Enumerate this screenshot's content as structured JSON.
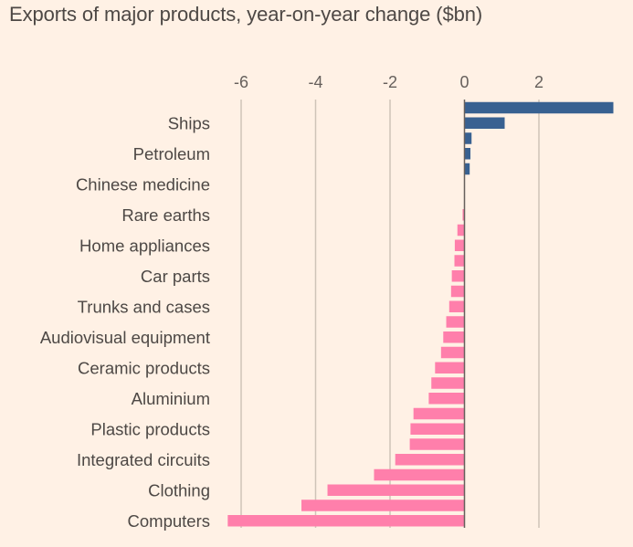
{
  "title": "Exports of major products, year-on-year change ($bn)",
  "colors": {
    "background": "#fff1e5",
    "positive": "#386191",
    "negative": "#ff7fab",
    "gridline": "#cfc4b8",
    "zero_line": "#66605c",
    "text": "#4d4845"
  },
  "chart_data": {
    "type": "bar",
    "orientation": "horizontal",
    "title": "Exports of major products, year-on-year change ($bn)",
    "xlabel": "",
    "ylabel": "",
    "xlim": [
      -6.5,
      4.1
    ],
    "x_ticks": [
      -6,
      -4,
      -2,
      0,
      2
    ],
    "x_tick_labels": [
      "-6",
      "-4",
      "-2",
      "0",
      "2"
    ],
    "x_axis_position": "top",
    "grid": true,
    "legend": null,
    "note": "Only every second bar carries a category label; unlabeled bars are shown without text",
    "categories": [
      "",
      "Ships",
      "",
      "Petroleum",
      "",
      "Chinese medicine",
      "",
      "Rare earths",
      "",
      "Home appliances",
      "",
      "Car parts",
      "",
      "Trunks and cases",
      "",
      "Audiovisual equipment",
      "",
      "Ceramic products",
      "",
      "Aluminium",
      "",
      "Plastic products",
      "",
      "Integrated circuits",
      "",
      "Clothing",
      "",
      "Computers"
    ],
    "values": [
      4.0,
      1.08,
      0.19,
      0.16,
      0.14,
      0.0,
      0.0,
      -0.05,
      -0.19,
      -0.26,
      -0.27,
      -0.34,
      -0.36,
      -0.41,
      -0.49,
      -0.57,
      -0.63,
      -0.79,
      -0.89,
      -0.96,
      -1.37,
      -1.45,
      -1.47,
      -1.86,
      -2.43,
      -3.68,
      -4.38,
      -6.36
    ]
  }
}
